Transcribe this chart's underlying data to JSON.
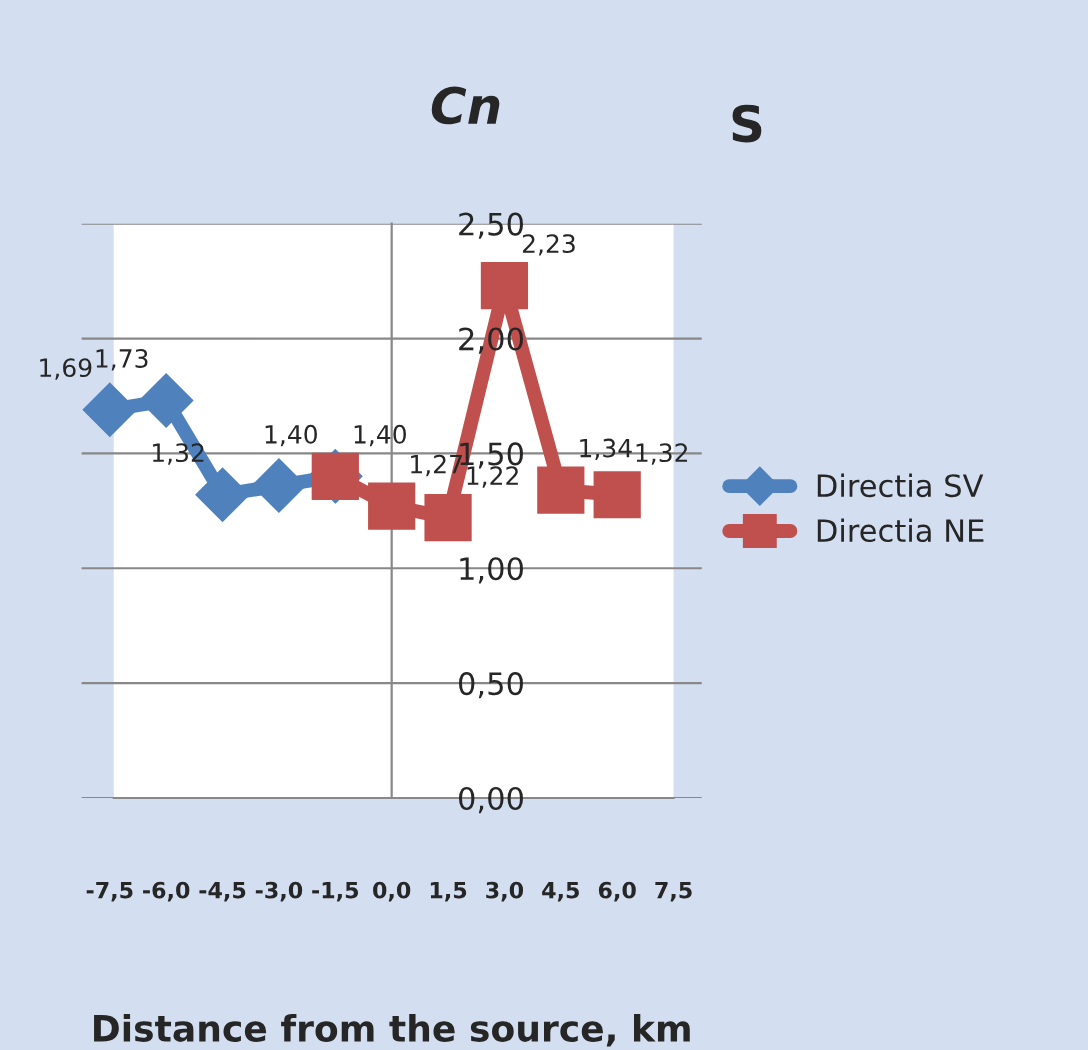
{
  "chart_data": {
    "type": "line",
    "title": "Cn",
    "annotations": [
      "S"
    ],
    "xlabel": "Distance from the source, km",
    "categories": [
      "-7,5",
      "-6,0",
      "-4,5",
      "-3,0",
      "-1,5",
      "0,0",
      "1,5",
      "3,0",
      "4,5",
      "6,0",
      "7,5"
    ],
    "series": [
      {
        "name": "Directia SV",
        "color": "#4f81bd",
        "marker": "diamond",
        "values": [
          1.69,
          1.73,
          1.32,
          1.36,
          1.4,
          null,
          null,
          null,
          null,
          null,
          null
        ],
        "value_labels": [
          "1,69",
          "1,73",
          "1,32",
          null,
          "1,40",
          null,
          null,
          null,
          null,
          null,
          null
        ]
      },
      {
        "name": "Directia NE",
        "color": "#c0504d",
        "marker": "square",
        "values": [
          null,
          null,
          null,
          null,
          1.4,
          1.27,
          1.22,
          2.23,
          1.34,
          1.32,
          null
        ],
        "value_labels": [
          null,
          null,
          null,
          null,
          "1,40",
          "1,27",
          "1,22",
          "2,23",
          "1,34",
          "1,32",
          null
        ]
      }
    ],
    "ylim": [
      0,
      2.5
    ],
    "yticks": [
      {
        "value": 0,
        "label": "0,00"
      },
      {
        "value": 0.5,
        "label": "0,50"
      },
      {
        "value": 1,
        "label": "1,00"
      },
      {
        "value": 1.5,
        "label": "1,50"
      },
      {
        "value": 2,
        "label": "2,00"
      },
      {
        "value": 2.5,
        "label": "2,50"
      }
    ],
    "grid": "y",
    "legend": "right",
    "line_style": "solid"
  }
}
